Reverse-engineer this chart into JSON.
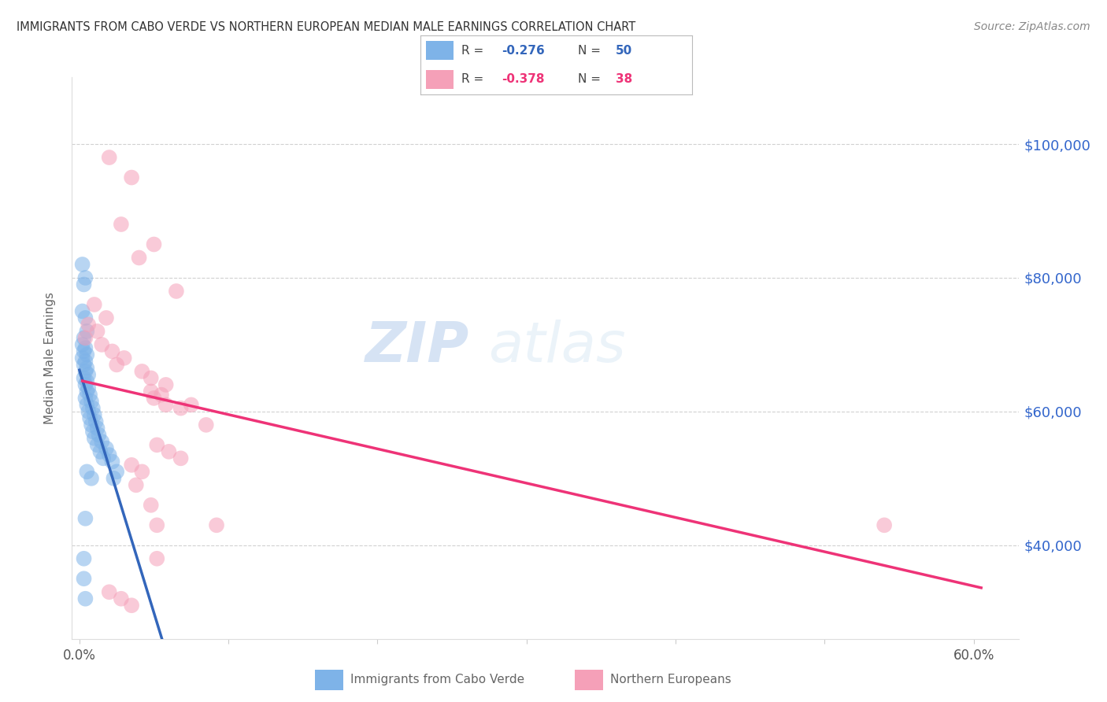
{
  "title": "IMMIGRANTS FROM CABO VERDE VS NORTHERN EUROPEAN MEDIAN MALE EARNINGS CORRELATION CHART",
  "source": "Source: ZipAtlas.com",
  "ylabel": "Median Male Earnings",
  "y_ticks": [
    40000,
    60000,
    80000,
    100000
  ],
  "y_tick_labels": [
    "$40,000",
    "$60,000",
    "$80,000",
    "$100,000"
  ],
  "ylim": [
    26000,
    110000
  ],
  "xlim": [
    -0.005,
    0.63
  ],
  "cabo_verde_points": [
    [
      0.002,
      82000
    ],
    [
      0.004,
      80000
    ],
    [
      0.002,
      75000
    ],
    [
      0.003,
      79000
    ],
    [
      0.004,
      74000
    ],
    [
      0.005,
      72000
    ],
    [
      0.003,
      71000
    ],
    [
      0.002,
      70000
    ],
    [
      0.004,
      69500
    ],
    [
      0.003,
      69000
    ],
    [
      0.005,
      68500
    ],
    [
      0.002,
      68000
    ],
    [
      0.004,
      67500
    ],
    [
      0.003,
      67000
    ],
    [
      0.005,
      66500
    ],
    [
      0.004,
      66000
    ],
    [
      0.006,
      65500
    ],
    [
      0.003,
      65000
    ],
    [
      0.005,
      64500
    ],
    [
      0.004,
      64000
    ],
    [
      0.006,
      63500
    ],
    [
      0.005,
      63000
    ],
    [
      0.007,
      62500
    ],
    [
      0.004,
      62000
    ],
    [
      0.008,
      61500
    ],
    [
      0.005,
      61000
    ],
    [
      0.009,
      60500
    ],
    [
      0.006,
      60000
    ],
    [
      0.01,
      59500
    ],
    [
      0.007,
      59000
    ],
    [
      0.011,
      58500
    ],
    [
      0.008,
      58000
    ],
    [
      0.012,
      57500
    ],
    [
      0.009,
      57000
    ],
    [
      0.013,
      56500
    ],
    [
      0.01,
      56000
    ],
    [
      0.015,
      55500
    ],
    [
      0.012,
      55000
    ],
    [
      0.018,
      54500
    ],
    [
      0.014,
      54000
    ],
    [
      0.02,
      53500
    ],
    [
      0.016,
      53000
    ],
    [
      0.022,
      52500
    ],
    [
      0.005,
      51000
    ],
    [
      0.025,
      51000
    ],
    [
      0.008,
      50000
    ],
    [
      0.023,
      50000
    ],
    [
      0.004,
      44000
    ],
    [
      0.003,
      38000
    ],
    [
      0.003,
      35000
    ],
    [
      0.004,
      32000
    ]
  ],
  "northern_europe_points": [
    [
      0.02,
      98000
    ],
    [
      0.035,
      95000
    ],
    [
      0.028,
      88000
    ],
    [
      0.05,
      85000
    ],
    [
      0.04,
      83000
    ],
    [
      0.065,
      78000
    ],
    [
      0.01,
      76000
    ],
    [
      0.018,
      74000
    ],
    [
      0.006,
      73000
    ],
    [
      0.012,
      72000
    ],
    [
      0.004,
      71000
    ],
    [
      0.015,
      70000
    ],
    [
      0.022,
      69000
    ],
    [
      0.03,
      68000
    ],
    [
      0.025,
      67000
    ],
    [
      0.042,
      66000
    ],
    [
      0.048,
      65000
    ],
    [
      0.058,
      64000
    ],
    [
      0.048,
      63000
    ],
    [
      0.055,
      62500
    ],
    [
      0.05,
      62000
    ],
    [
      0.058,
      61000
    ],
    [
      0.075,
      61000
    ],
    [
      0.068,
      60500
    ],
    [
      0.085,
      58000
    ],
    [
      0.052,
      55000
    ],
    [
      0.06,
      54000
    ],
    [
      0.068,
      53000
    ],
    [
      0.035,
      52000
    ],
    [
      0.042,
      51000
    ],
    [
      0.038,
      49000
    ],
    [
      0.048,
      46000
    ],
    [
      0.052,
      43000
    ],
    [
      0.052,
      38000
    ],
    [
      0.092,
      43000
    ],
    [
      0.02,
      33000
    ],
    [
      0.028,
      32000
    ],
    [
      0.035,
      31000
    ],
    [
      0.54,
      43000
    ]
  ],
  "cabo_verde_color": "#7eb3e8",
  "northern_europe_color": "#f5a0b8",
  "cabo_verde_line_color": "#3366bb",
  "northern_europe_line_color": "#ee3377",
  "watermark_zip": "ZIP",
  "watermark_atlas": "atlas",
  "background_color": "#ffffff",
  "grid_color": "#cccccc",
  "y_label_color": "#3366cc",
  "title_color": "#333333"
}
